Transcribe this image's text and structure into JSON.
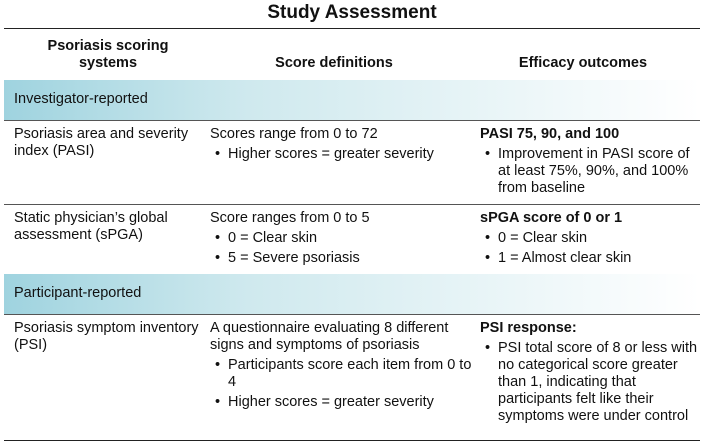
{
  "title": "Study Assessment",
  "headers": [
    "Psoriasis scoring systems",
    "Score definitions",
    "Efficacy outcomes"
  ],
  "groups": {
    "investigator": "Investigator-reported",
    "participant": "Participant-reported"
  },
  "rows": [
    {
      "system": "Psoriasis area and severity index (PASI)",
      "definition": "Scores range from 0 to 72",
      "definition_bullets": [
        "Higher scores = greater severity"
      ],
      "outcome_title": "PASI 75, 90, and 100",
      "outcome_bullets": [
        "Improvement in PASI score of at least 75%, 90%, and 100% from baseline"
      ]
    },
    {
      "system": "Static physician’s global assessment (sPGA)",
      "definition": "Score ranges from 0 to 5",
      "definition_bullets": [
        "0 = Clear skin",
        "5 = Severe psoriasis"
      ],
      "outcome_title": "sPGA score of 0 or 1",
      "outcome_bullets": [
        "0 = Clear skin",
        "1 = Almost clear skin"
      ]
    },
    {
      "system": "Psoriasis symptom inventory (PSI)",
      "definition": "A questionnaire evaluating 8 different signs and symptoms of psoriasis",
      "definition_bullets": [
        "Participants score each item from 0 to 4",
        "Higher scores = greater severity"
      ],
      "outcome_title": "PSI response:",
      "outcome_bullets": [
        "PSI total score of 8 or less with no categorical score greater than 1, indicating that participants felt like their symptoms were under control"
      ]
    }
  ]
}
